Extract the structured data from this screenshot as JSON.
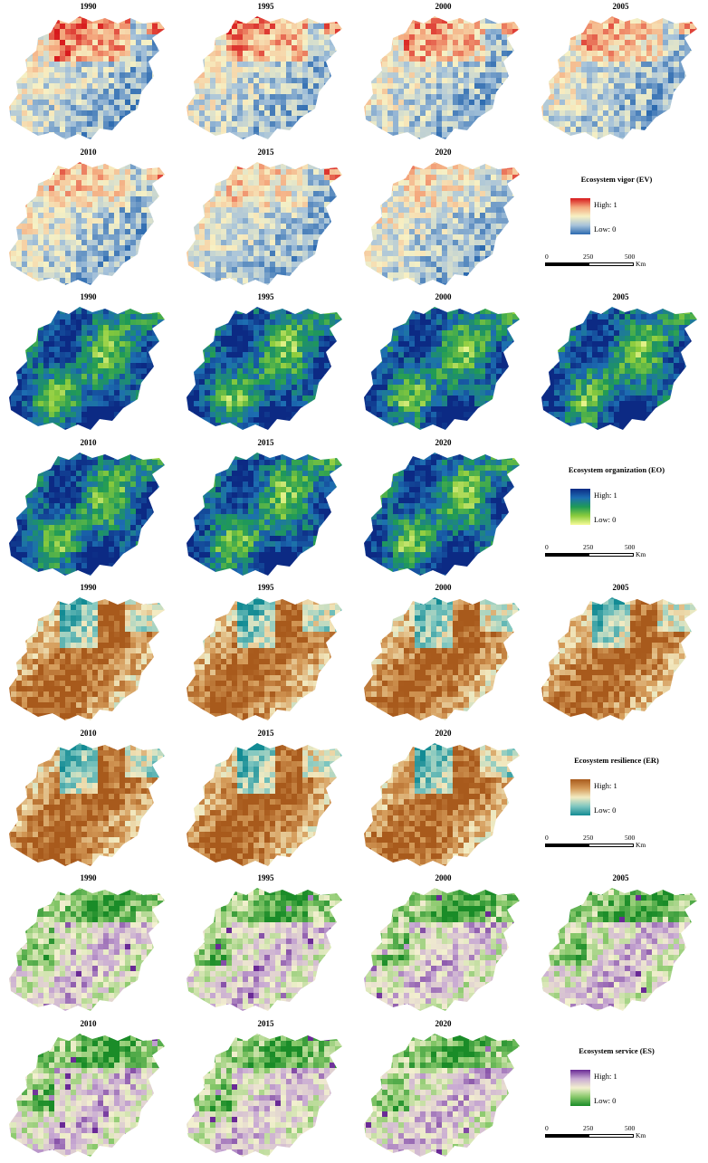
{
  "units": [
    {
      "id": "ev",
      "years_top": [
        "1990",
        "1995",
        "2000",
        "2005"
      ],
      "years_bottom": [
        "2010",
        "2015",
        "2020"
      ],
      "legend": {
        "title": "Ecosystem vigor (EV)",
        "high": "High: 1",
        "low": "Low: 0"
      },
      "ramp": [
        "#d7191c",
        "#f4a97e",
        "#f7f1c4",
        "#a7c3da",
        "#2c6ab0"
      ],
      "scale": {
        "ticks": [
          "0",
          "250",
          "500"
        ],
        "unit": "Km"
      }
    },
    {
      "id": "eo",
      "years_top": [
        "1990",
        "1995",
        "2000",
        "2005"
      ],
      "years_bottom": [
        "2010",
        "2015",
        "2020"
      ],
      "legend": {
        "title": "Ecosystem organization (EO)",
        "high": "High: 1",
        "low": "Low: 0"
      },
      "ramp": [
        "#0c2a84",
        "#1d6eb2",
        "#1f9a56",
        "#8ccc3c",
        "#f7fb9a"
      ],
      "scale": {
        "ticks": [
          "0",
          "250",
          "500"
        ],
        "unit": "Km"
      }
    },
    {
      "id": "er",
      "years_top": [
        "1990",
        "1995",
        "2000",
        "2005"
      ],
      "years_bottom": [
        "2010",
        "2015",
        "2020"
      ],
      "legend": {
        "title": "Ecosystem resilience (ER)",
        "high": "High: 1",
        "low": "Low: 0"
      },
      "ramp": [
        "#a85a1c",
        "#d49a58",
        "#f3ebc2",
        "#7ec6c0",
        "#138b94"
      ],
      "scale": {
        "ticks": [
          "0",
          "250",
          "500"
        ],
        "unit": "Km"
      }
    },
    {
      "id": "es",
      "years_top": [
        "1990",
        "1995",
        "2000",
        "2005"
      ],
      "years_bottom": [
        "2010",
        "2015",
        "2020"
      ],
      "legend": {
        "title": "Ecosystem service (ES)",
        "high": "High: 1",
        "low": "Low: 0"
      },
      "ramp": [
        "#6a2a96",
        "#c9abd3",
        "#f3f0cf",
        "#87c86a",
        "#1a8c28"
      ],
      "scale": {
        "ticks": [
          "0",
          "250",
          "500"
        ],
        "unit": "Km"
      }
    }
  ]
}
